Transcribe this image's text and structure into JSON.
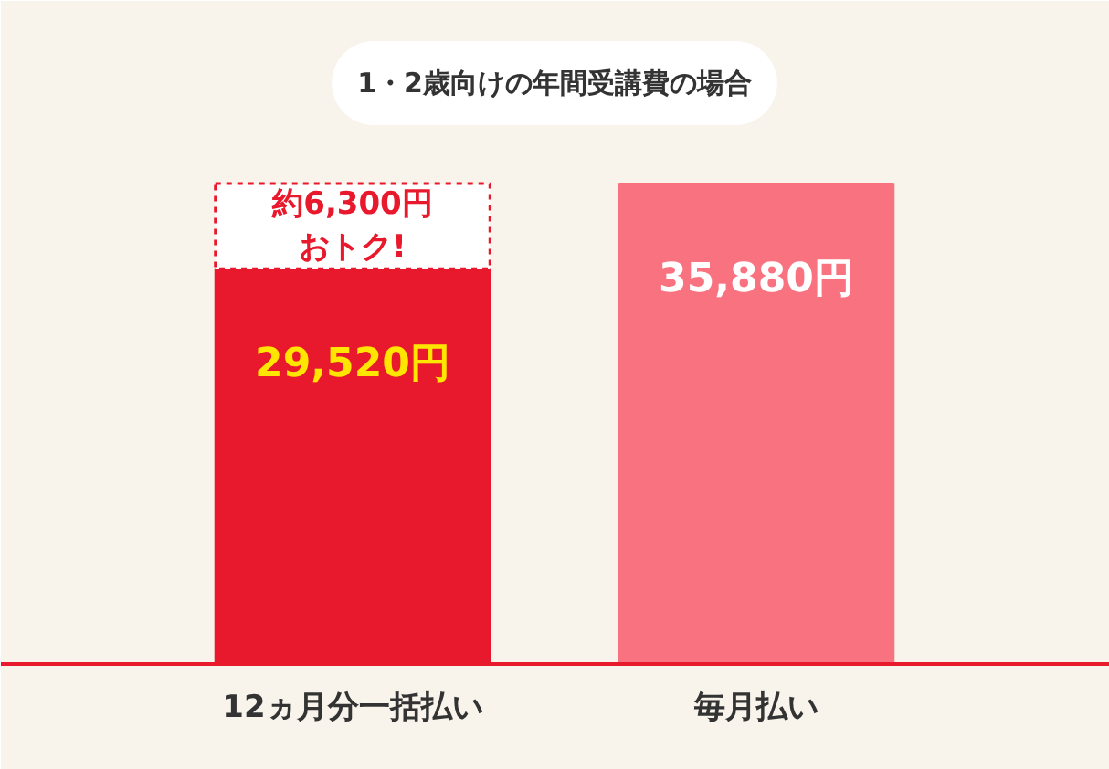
{
  "chart_data": {
    "type": "bar",
    "title": "1・2歳向けの年間受講費の場合",
    "stacked": true,
    "categories": [
      "12ヵ月分一括払い",
      "毎月払い"
    ],
    "series": [
      {
        "colors": [
          "#e8192c",
          "#f8737f"
        ],
        "values": [
          29520,
          35880
        ],
        "value_labels": [
          "29,520円",
          "35,880円"
        ]
      },
      {
        "color": "#ffffff",
        "values": [
          6360,
          null
        ],
        "line_style": "dashed"
      }
    ],
    "annotations": [
      "約6,300円",
      "おトク!"
    ]
  }
}
